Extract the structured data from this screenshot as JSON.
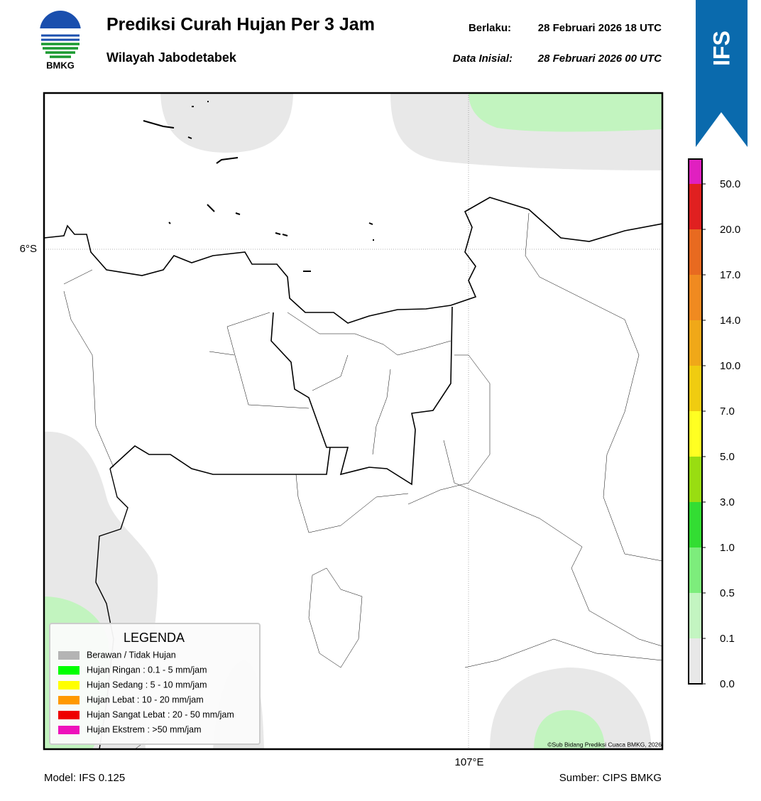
{
  "header": {
    "logo_text": "BMKG",
    "title": "Prediksi Curah Hujan Per 3 Jam",
    "subtitle": "Wilayah Jabodetabek",
    "valid_label": "Berlaku:",
    "valid": "28 Februari 2026 18 UTC",
    "init_label": "Data Inisial:",
    "init": "28 Februari 2026 00 UTC",
    "badge": "IFS"
  },
  "map": {
    "lat_label": "6°S",
    "lon_label": "107°E",
    "copyright": "©Sub Bidang Prediksi Cuaca BMKG, 2026"
  },
  "legend": {
    "title": "LEGENDA",
    "items": [
      {
        "label": "Berawan / Tidak Hujan",
        "color": "#b4b4b4"
      },
      {
        "label": "Hujan Ringan : 0.1 - 5 mm/jam",
        "color": "#00ff00"
      },
      {
        "label": "Hujan Sedang : 5 - 10 mm/jam",
        "color": "#ffff00"
      },
      {
        "label": "Hujan Lebat : 10 - 20 mm/jam",
        "color": "#ff9900"
      },
      {
        "label": "Hujan Sangat Lebat : 20 - 50 mm/jam",
        "color": "#ee0000"
      },
      {
        "label": "Hujan Ekstrem : >50 mm/jam",
        "color": "#ee11bb"
      }
    ]
  },
  "colorbar": {
    "ticks": [
      "0.0",
      "0.1",
      "0.5",
      "1.0",
      "3.0",
      "5.0",
      "7.0",
      "10.0",
      "14.0",
      "17.0",
      "20.0",
      "50.0"
    ],
    "colors": [
      "#e8e8e8",
      "#c3f5c1",
      "#7ded7c",
      "#33dd33",
      "#99dd11",
      "#ffff22",
      "#f0cc10",
      "#f0a818",
      "#f08a20",
      "#e86a20",
      "#e02020",
      "#e020c0"
    ]
  },
  "footer": {
    "model": "Model: IFS 0.125",
    "source": "Sumber: CIPS BMKG"
  }
}
